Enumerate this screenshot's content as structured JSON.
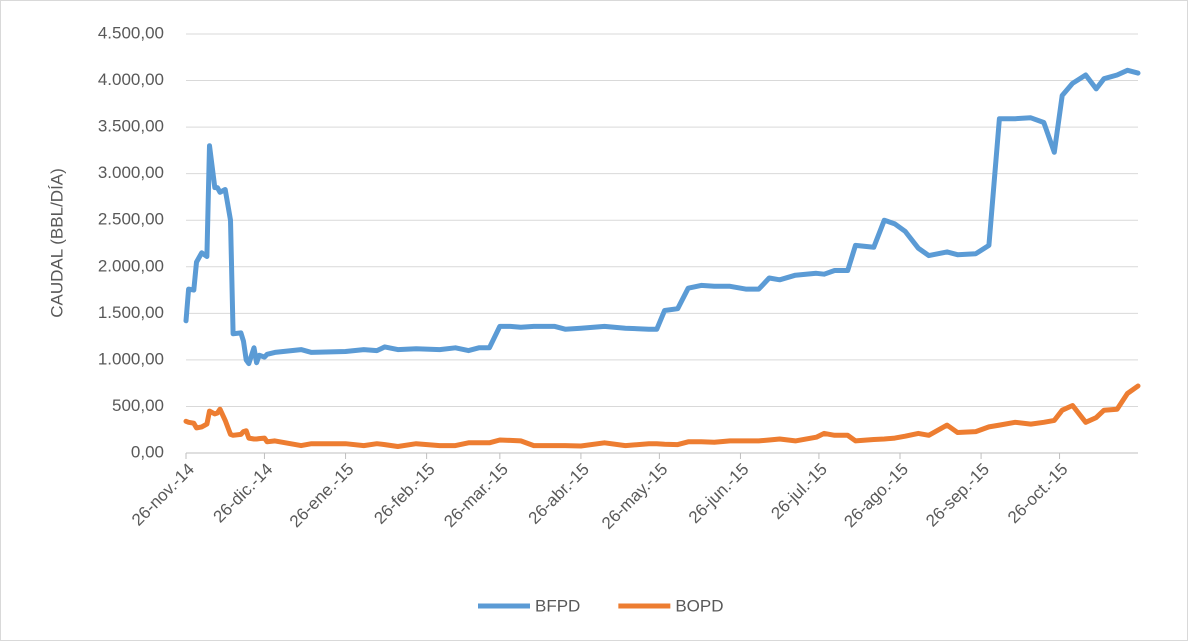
{
  "chart_data": {
    "type": "line",
    "y_label": "CAUDAL (BBL/DÍA)",
    "x": [
      "2014-11-26",
      "2014-11-27",
      "2014-11-29",
      "2014-11-30",
      "2014-12-02",
      "2014-12-04",
      "2014-12-05",
      "2014-12-07",
      "2014-12-08",
      "2014-12-09",
      "2014-12-11",
      "2014-12-13",
      "2014-12-14",
      "2014-12-17",
      "2014-12-18",
      "2014-12-19",
      "2014-12-20",
      "2014-12-22",
      "2014-12-23",
      "2014-12-24",
      "2014-12-26",
      "2014-12-27",
      "2014-12-30",
      "2015-01-09",
      "2015-01-13",
      "2015-01-26",
      "2015-02-02",
      "2015-02-07",
      "2015-02-10",
      "2015-02-15",
      "2015-02-22",
      "2015-03-03",
      "2015-03-09",
      "2015-03-14",
      "2015-03-18",
      "2015-03-22",
      "2015-03-26",
      "2015-03-30",
      "2015-04-03",
      "2015-04-08",
      "2015-04-16",
      "2015-04-20",
      "2015-04-26",
      "2015-05-05",
      "2015-05-13",
      "2015-05-22",
      "2015-05-25",
      "2015-05-28",
      "2015-06-02",
      "2015-06-06",
      "2015-06-11",
      "2015-06-16",
      "2015-06-22",
      "2015-06-28",
      "2015-07-03",
      "2015-07-07",
      "2015-07-11",
      "2015-07-17",
      "2015-07-25",
      "2015-07-28",
      "2015-08-01",
      "2015-08-06",
      "2015-08-09",
      "2015-08-16",
      "2015-08-20",
      "2015-08-24",
      "2015-08-28",
      "2015-09-02",
      "2015-09-06",
      "2015-09-13",
      "2015-09-17",
      "2015-09-24",
      "2015-09-29",
      "2015-10-03",
      "2015-10-09",
      "2015-10-15",
      "2015-10-20",
      "2015-10-24",
      "2015-10-27",
      "2015-10-31",
      "2015-11-05",
      "2015-11-09",
      "2015-11-12",
      "2015-11-17",
      "2015-11-21",
      "2015-11-25"
    ],
    "series": [
      {
        "name": "BFPD",
        "color": "#5b9bd5",
        "values": [
          1420,
          1760,
          1750,
          2050,
          2150,
          2110,
          3300,
          2850,
          2850,
          2800,
          2830,
          2500,
          1280,
          1290,
          1200,
          1000,
          960,
          1130,
          970,
          1050,
          1030,
          1060,
          1080,
          1110,
          1080,
          1090,
          1110,
          1100,
          1140,
          1110,
          1120,
          1110,
          1130,
          1100,
          1130,
          1130,
          1360,
          1360,
          1350,
          1360,
          1360,
          1330,
          1340,
          1360,
          1340,
          1330,
          1330,
          1530,
          1550,
          1770,
          1800,
          1790,
          1790,
          1760,
          1760,
          1880,
          1860,
          1910,
          1930,
          1920,
          1960,
          1960,
          2230,
          2210,
          2500,
          2460,
          2380,
          2200,
          2120,
          2160,
          2130,
          2140,
          2230,
          3590,
          3590,
          3600,
          3550,
          3230,
          3840,
          3970,
          4060,
          3910,
          4020,
          4060,
          4110,
          4080
        ]
      },
      {
        "name": "BOPD",
        "color": "#ed7d31",
        "values": [
          340,
          330,
          320,
          270,
          280,
          310,
          450,
          420,
          430,
          470,
          350,
          200,
          190,
          200,
          230,
          240,
          160,
          150,
          150,
          155,
          160,
          120,
          130,
          80,
          100,
          100,
          80,
          100,
          90,
          70,
          100,
          80,
          80,
          110,
          110,
          110,
          140,
          135,
          130,
          80,
          80,
          80,
          75,
          110,
          80,
          100,
          100,
          95,
          90,
          120,
          120,
          115,
          130,
          130,
          130,
          140,
          150,
          130,
          170,
          210,
          190,
          190,
          130,
          145,
          150,
          160,
          180,
          210,
          190,
          300,
          220,
          230,
          280,
          300,
          330,
          310,
          330,
          350,
          460,
          510,
          330,
          380,
          460,
          470,
          640,
          720
        ]
      }
    ],
    "xlim": [
      "2014-11-26",
      "2015-11-25"
    ],
    "xticks": [
      {
        "value": "2014-11-26",
        "label": "26-nov.-14"
      },
      {
        "value": "2014-12-26",
        "label": "26-dic.-14"
      },
      {
        "value": "2015-01-26",
        "label": "26-ene.-15"
      },
      {
        "value": "2015-02-26",
        "label": "26-feb.-15"
      },
      {
        "value": "2015-03-26",
        "label": "26-mar.-15"
      },
      {
        "value": "2015-04-26",
        "label": "26-abr.-15"
      },
      {
        "value": "2015-05-26",
        "label": "26-may.-15"
      },
      {
        "value": "2015-06-26",
        "label": "26-jun.-15"
      },
      {
        "value": "2015-07-26",
        "label": "26-jul.-15"
      },
      {
        "value": "2015-08-26",
        "label": "26-ago.-15"
      },
      {
        "value": "2015-09-26",
        "label": "26-sep.-15"
      },
      {
        "value": "2015-10-26",
        "label": "26-oct.-15"
      }
    ],
    "ylim": [
      0,
      4500
    ],
    "yticks": [
      {
        "value": 0,
        "label": "0,00"
      },
      {
        "value": 500,
        "label": "500,00"
      },
      {
        "value": 1000,
        "label": "1.000,00"
      },
      {
        "value": 1500,
        "label": "1.500,00"
      },
      {
        "value": 2000,
        "label": "2.000,00"
      },
      {
        "value": 2500,
        "label": "2.500,00"
      },
      {
        "value": 3000,
        "label": "3.000,00"
      },
      {
        "value": 3500,
        "label": "3.500,00"
      },
      {
        "value": 4000,
        "label": "4.000,00"
      },
      {
        "value": 4500,
        "label": "4.500,00"
      }
    ],
    "grid": true,
    "legend": "bottom"
  }
}
